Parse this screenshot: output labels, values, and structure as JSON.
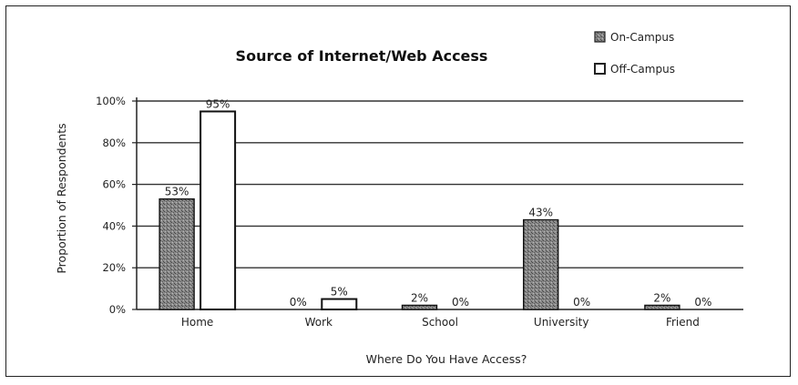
{
  "chart_data": {
    "type": "bar",
    "title": "Source of Internet/Web Access",
    "xlabel": "Where Do You Have Access?",
    "ylabel": "Proportion of Respondents",
    "ylim": [
      0,
      100
    ],
    "yticks": [
      0,
      20,
      40,
      60,
      80,
      100
    ],
    "ytick_labels": [
      "0%",
      "20%",
      "40%",
      "60%",
      "80%",
      "100%"
    ],
    "categories": [
      "Home",
      "Work",
      "School",
      "University",
      "Friend"
    ],
    "series": [
      {
        "name": "On-Campus",
        "values": [
          53,
          0,
          2,
          43,
          2
        ],
        "labels": [
          "53%",
          "0%",
          "2%",
          "43%",
          "2%"
        ],
        "color": "#777777"
      },
      {
        "name": "Off-Campus",
        "values": [
          95,
          5,
          0,
          0,
          0
        ],
        "labels": [
          "95%",
          "5%",
          "0%",
          "0%",
          "0%"
        ],
        "color": "#ffffff"
      }
    ],
    "grid": true,
    "legend_position": "top-right"
  }
}
